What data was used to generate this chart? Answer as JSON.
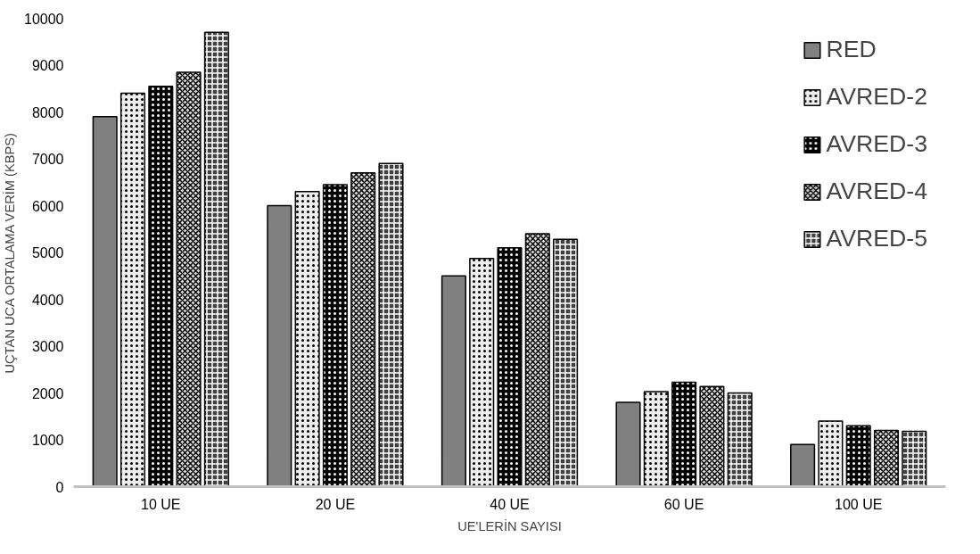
{
  "chart_data": {
    "type": "bar",
    "xlabel": "UE'LERİN SAYISI",
    "ylabel": "UÇTAN UCA ORTALAMA VERİM (KBPS)",
    "categories": [
      "10 UE",
      "20 UE",
      "40 UE",
      "60 UE",
      "100 UE"
    ],
    "series": [
      {
        "name": "RED",
        "color": "#808080",
        "values": [
          7900,
          6000,
          4500,
          1800,
          900
        ]
      },
      {
        "name": "AVRED-2",
        "color": "#eeeeee",
        "values": [
          8400,
          6300,
          4870,
          2030,
          1400
        ]
      },
      {
        "name": "AVRED-3",
        "color": "#000000",
        "values": [
          8550,
          6450,
          5100,
          2230,
          1300
        ]
      },
      {
        "name": "AVRED-4",
        "color": "#e0e0e0",
        "values": [
          8850,
          6700,
          5400,
          2140,
          1200
        ]
      },
      {
        "name": "AVRED-5",
        "color": "#404040",
        "values": [
          9700,
          6900,
          5280,
          2000,
          1180
        ]
      }
    ],
    "ylim": [
      0,
      10000
    ],
    "yticks": [
      0,
      1000,
      2000,
      3000,
      4000,
      5000,
      6000,
      7000,
      8000,
      9000,
      10000
    ],
    "grid": false,
    "legend": "top right"
  }
}
